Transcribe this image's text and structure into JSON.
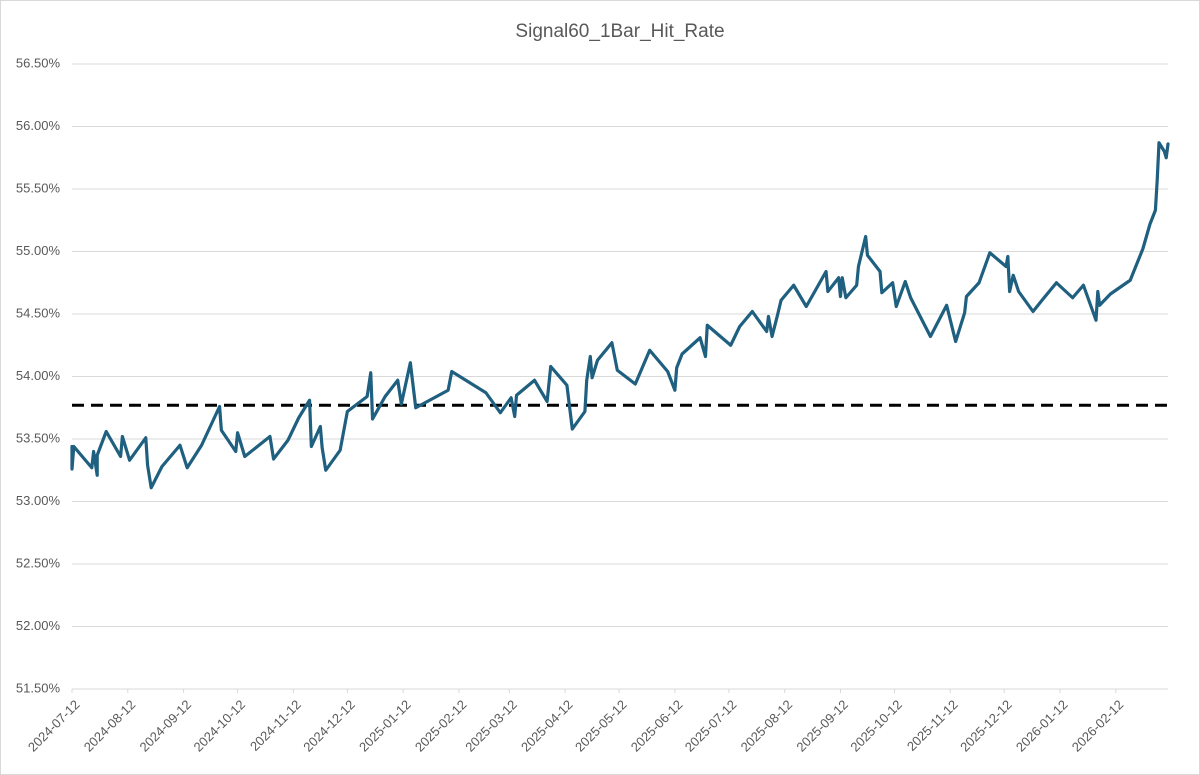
{
  "chart_data": {
    "type": "line",
    "title": "Signal60_1Bar_Hit_Rate",
    "x": [
      "2024-07-12",
      "2024-07-12",
      "2024-07-13",
      "2024-07-23",
      "2024-07-24",
      "2024-07-26",
      "2024-07-26",
      "2024-07-31",
      "2024-08-08",
      "2024-08-09",
      "2024-08-13",
      "2024-08-22",
      "2024-08-23",
      "2024-08-25",
      "2024-08-31",
      "2024-09-10",
      "2024-09-14",
      "2024-09-22",
      "2024-10-02",
      "2024-10-03",
      "2024-10-11",
      "2024-10-12",
      "2024-10-16",
      "2024-10-30",
      "2024-11-01",
      "2024-11-09",
      "2024-11-15",
      "2024-11-21",
      "2024-11-22",
      "2024-11-27",
      "2024-11-28",
      "2024-11-30",
      "2024-12-08",
      "2024-12-12",
      "2024-12-23",
      "2024-12-25",
      "2024-12-26",
      "2025-01-02",
      "2025-01-09",
      "2025-01-11",
      "2025-01-16",
      "2025-01-19",
      "2025-02-06",
      "2025-02-08",
      "2025-02-27",
      "2025-03-07",
      "2025-03-13",
      "2025-03-15",
      "2025-03-16",
      "2025-03-26",
      "2025-04-02",
      "2025-04-04",
      "2025-04-13",
      "2025-04-16",
      "2025-04-23",
      "2025-04-24",
      "2025-04-26",
      "2025-04-27",
      "2025-04-30",
      "2025-05-08",
      "2025-05-11",
      "2025-05-21",
      "2025-05-29",
      "2025-06-08",
      "2025-06-12",
      "2025-06-13",
      "2025-06-16",
      "2025-06-26",
      "2025-06-29",
      "2025-06-30",
      "2025-07-13",
      "2025-07-18",
      "2025-07-25",
      "2025-08-02",
      "2025-08-03",
      "2025-08-05",
      "2025-08-08",
      "2025-08-10",
      "2025-08-17",
      "2025-08-24",
      "2025-09-04",
      "2025-09-05",
      "2025-09-11",
      "2025-09-12",
      "2025-09-13",
      "2025-09-15",
      "2025-09-21",
      "2025-09-22",
      "2025-09-26",
      "2025-09-27",
      "2025-10-04",
      "2025-10-05",
      "2025-10-11",
      "2025-10-13",
      "2025-10-18",
      "2025-10-21",
      "2025-11-01",
      "2025-11-10",
      "2025-11-15",
      "2025-11-20",
      "2025-11-21",
      "2025-11-28",
      "2025-12-04",
      "2025-12-13",
      "2025-12-14",
      "2025-12-15",
      "2025-12-17",
      "2025-12-20",
      "2025-12-28",
      "2026-01-02",
      "2026-01-10",
      "2026-01-19",
      "2026-01-25",
      "2026-02-01",
      "2026-02-02",
      "2026-02-03",
      "2026-02-09",
      "2026-02-20",
      "2026-02-27",
      "2026-03-03",
      "2026-03-06",
      "2026-03-07",
      "2026-03-08",
      "2026-03-11",
      "2026-03-12",
      "2026-03-13"
    ],
    "series": [
      {
        "color": "#1f5f7f",
        "values": [
          53.44,
          53.26,
          53.44,
          53.27,
          53.4,
          53.21,
          53.37,
          53.56,
          53.36,
          53.52,
          53.33,
          53.51,
          53.29,
          53.11,
          53.28,
          53.45,
          53.27,
          53.45,
          53.76,
          53.57,
          53.4,
          53.55,
          53.36,
          53.52,
          53.34,
          53.49,
          53.67,
          53.81,
          53.44,
          53.6,
          53.43,
          53.25,
          53.41,
          53.72,
          53.84,
          54.03,
          53.66,
          53.84,
          53.97,
          53.78,
          54.11,
          53.75,
          53.89,
          54.04,
          53.87,
          53.71,
          53.83,
          53.68,
          53.85,
          53.97,
          53.8,
          54.08,
          53.93,
          53.58,
          53.72,
          53.97,
          54.16,
          53.99,
          54.13,
          54.27,
          54.05,
          53.94,
          54.21,
          54.04,
          53.89,
          54.07,
          54.18,
          54.31,
          54.16,
          54.41,
          54.25,
          54.4,
          54.52,
          54.36,
          54.48,
          54.32,
          54.49,
          54.61,
          54.73,
          54.56,
          54.84,
          54.68,
          54.79,
          54.64,
          54.79,
          54.63,
          54.73,
          54.88,
          55.12,
          54.97,
          54.84,
          54.67,
          54.75,
          54.56,
          54.76,
          54.63,
          54.32,
          54.57,
          54.28,
          54.51,
          54.64,
          54.75,
          54.99,
          54.88,
          54.96,
          54.68,
          54.81,
          54.68,
          54.52,
          54.61,
          54.75,
          54.63,
          54.73,
          54.45,
          54.68,
          54.57,
          54.66,
          54.77,
          55.02,
          55.22,
          55.33,
          55.57,
          55.87,
          55.8,
          55.75,
          55.86
        ]
      }
    ],
    "reference_lines": [
      {
        "y": 53.77,
        "color": "#000000",
        "dashed": true
      }
    ],
    "xlim": [
      "2024-07-12",
      "2026-03-13"
    ],
    "xticks": [
      "2024-07-12",
      "2024-08-12",
      "2024-09-12",
      "2024-10-12",
      "2024-11-12",
      "2024-12-12",
      "2025-01-12",
      "2025-02-12",
      "2025-03-12",
      "2025-04-12",
      "2025-05-12",
      "2025-06-12",
      "2025-07-12",
      "2025-08-12",
      "2025-09-12",
      "2025-10-12",
      "2025-11-12",
      "2025-12-12",
      "2026-01-12",
      "2026-02-12"
    ],
    "ylim": [
      51.5,
      56.5
    ],
    "yticks": [
      {
        "value": 51.5,
        "label": "51.50%"
      },
      {
        "value": 52,
        "label": "52.00%"
      },
      {
        "value": 52.5,
        "label": "52.50%"
      },
      {
        "value": 53,
        "label": "53.00%"
      },
      {
        "value": 53.5,
        "label": "53.50%"
      },
      {
        "value": 54,
        "label": "54.00%"
      },
      {
        "value": 54.5,
        "label": "54.50%"
      },
      {
        "value": 55,
        "label": "55.00%"
      },
      {
        "value": 55.5,
        "label": "55.50%"
      },
      {
        "value": 56,
        "label": "56.00%"
      },
      {
        "value": 56.5,
        "label": "56.50%"
      }
    ],
    "grid": true
  }
}
